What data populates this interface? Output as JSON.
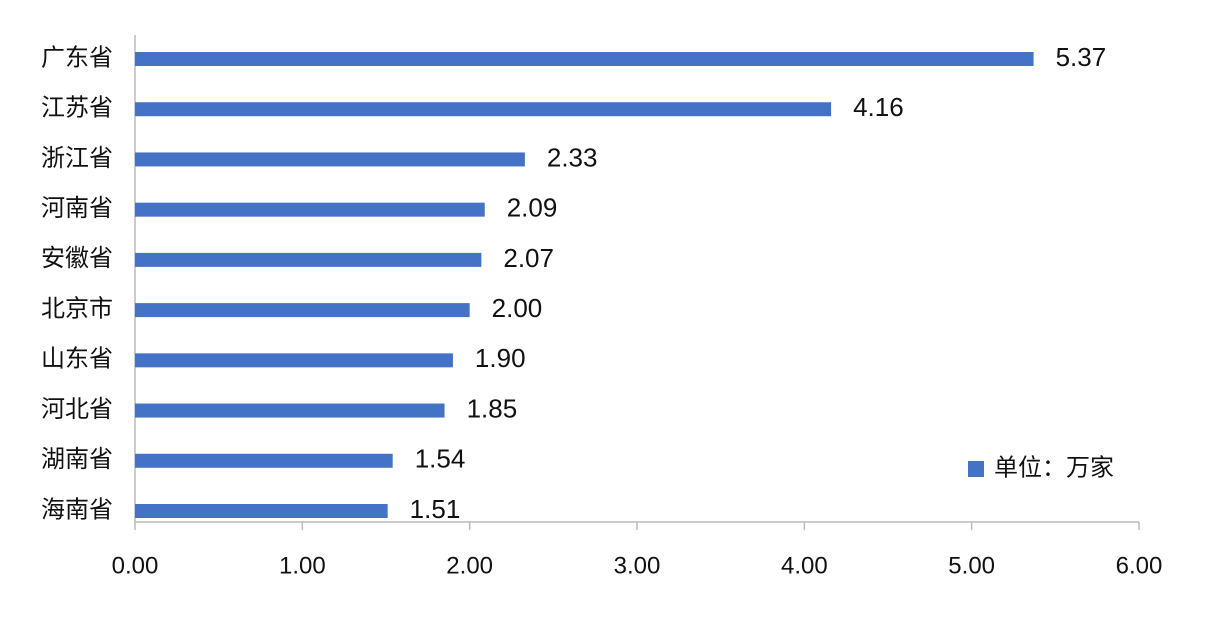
{
  "chart_data": {
    "type": "barh",
    "categories": [
      "广东省",
      "江苏省",
      "浙江省",
      "河南省",
      "安徽省",
      "北京市",
      "山东省",
      "河北省",
      "湖南省",
      "海南省"
    ],
    "series": [
      {
        "name": "单位：万家",
        "color": "#4472c4",
        "values": [
          5.37,
          4.16,
          2.33,
          2.09,
          2.07,
          2.0,
          1.9,
          1.85,
          1.54,
          1.51
        ],
        "value_labels": [
          "5.37",
          "4.16",
          "2.33",
          "2.09",
          "2.07",
          "2.00",
          "1.90",
          "1.85",
          "1.54",
          "1.51"
        ]
      }
    ],
    "xlim": [
      0,
      6
    ],
    "xticks": [
      {
        "value": 0,
        "label": "0.00"
      },
      {
        "value": 1,
        "label": "1.00"
      },
      {
        "value": 2,
        "label": "2.00"
      },
      {
        "value": 3,
        "label": "3.00"
      },
      {
        "value": 4,
        "label": "4.00"
      },
      {
        "value": 5,
        "label": "5.00"
      },
      {
        "value": 6,
        "label": "6.00"
      }
    ],
    "legend": "lower right"
  }
}
